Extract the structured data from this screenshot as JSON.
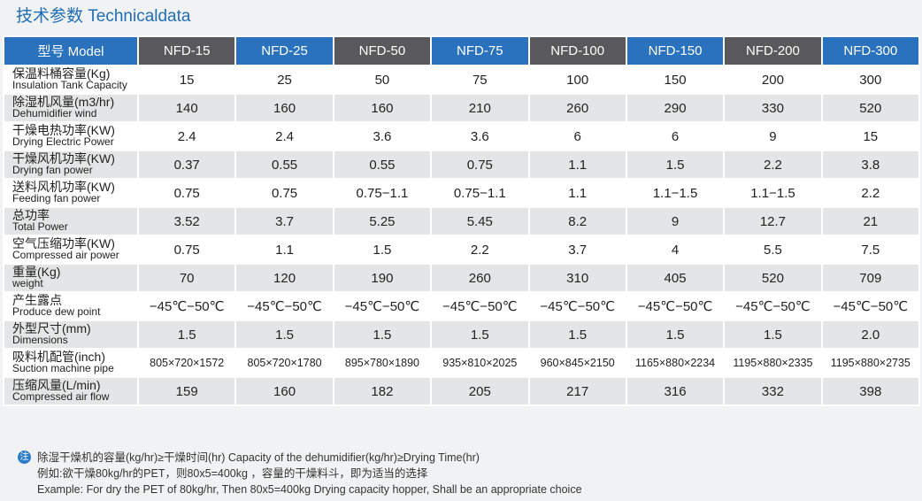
{
  "header": {
    "title": "技术参数 Technicaldata"
  },
  "table": {
    "columns": [
      "型号 Model",
      "NFD-15",
      "NFD-25",
      "NFD-50",
      "NFD-75",
      "NFD-100",
      "NFD-150",
      "NFD-200",
      "NFD-300"
    ],
    "rows": [
      {
        "zh": "保温料桶容量(Kg)",
        "en": "Insulation Tank Capacity",
        "values": [
          "15",
          "25",
          "50",
          "75",
          "100",
          "150",
          "200",
          "300"
        ]
      },
      {
        "zh": "除湿机风量(m3/hr)",
        "en": "Dehumidifier wind",
        "values": [
          "140",
          "160",
          "160",
          "210",
          "260",
          "290",
          "330",
          "520"
        ]
      },
      {
        "zh": "干燥电热功率(KW)",
        "en": "Drying Electric Power",
        "values": [
          "2.4",
          "2.4",
          "3.6",
          "3.6",
          "6",
          "6",
          "9",
          "15"
        ]
      },
      {
        "zh": "干燥风机功率(KW)",
        "en": "Drying fan power",
        "values": [
          "0.37",
          "0.55",
          "0.55",
          "0.75",
          "1.1",
          "1.5",
          "2.2",
          "3.8"
        ]
      },
      {
        "zh": "送料风机功率(KW)",
        "en": "Feeding fan power",
        "values": [
          "0.75",
          "0.75",
          "0.75−1.1",
          "0.75−1.1",
          "1.1",
          "1.1−1.5",
          "1.1−1.5",
          "2.2"
        ]
      },
      {
        "zh": "总功率",
        "en": "Total Power",
        "values": [
          "3.52",
          "3.7",
          "5.25",
          "5.45",
          "8.2",
          "9",
          "12.7",
          "21"
        ]
      },
      {
        "zh": "空气压缩功率(KW)",
        "en": "Compressed air power",
        "values": [
          "0.75",
          "1.1",
          "1.5",
          "2.2",
          "3.7",
          "4",
          "5.5",
          "7.5"
        ]
      },
      {
        "zh": "重量(Kg)",
        "en": "weight",
        "values": [
          "70",
          "120",
          "190",
          "260",
          "310",
          "405",
          "520",
          "709"
        ]
      },
      {
        "zh": "产生露点",
        "en": "Produce dew point",
        "values": [
          "−45℃−50℃",
          "−45℃−50℃",
          "−45℃−50℃",
          "−45℃−50℃",
          "−45℃−50℃",
          "−45℃−50℃",
          "−45℃−50℃",
          "−45℃−50℃"
        ]
      },
      {
        "zh": "外型尺寸(mm)",
        "en": "Dimensions",
        "values": [
          "1.5",
          "1.5",
          "1.5",
          "1.5",
          "1.5",
          "1.5",
          "1.5",
          "2.0"
        ]
      },
      {
        "zh": "吸料机配管(inch)",
        "en": "Suction machine pipe",
        "values": [
          "805×720×1572",
          "805×720×1780",
          "895×780×1890",
          "935×810×2025",
          "960×845×2150",
          "1165×880×2234",
          "1195×880×2335",
          "1195×880×2735"
        ]
      },
      {
        "zh": "压缩风量(L/min)",
        "en": "Compressed air flow",
        "values": [
          "159",
          "160",
          "182",
          "205",
          "217",
          "316",
          "332",
          "398"
        ]
      }
    ]
  },
  "note": {
    "icon": "注",
    "lines": [
      "除湿干燥机的容量(kg/hr)≥干燥时间(hr)   Capacity of the dehumidifier(kg/hr)≥Drying Time(hr)",
      "例如:欲干燥80kg/hr的PET，则80x5=400kg ，容量的干燥料斗，即为适当的选择",
      "Example: For dry the PET of 80kg/hr, Then 80x5=400kg Drying capacity hopper, Shall be an appropriate choice"
    ]
  }
}
